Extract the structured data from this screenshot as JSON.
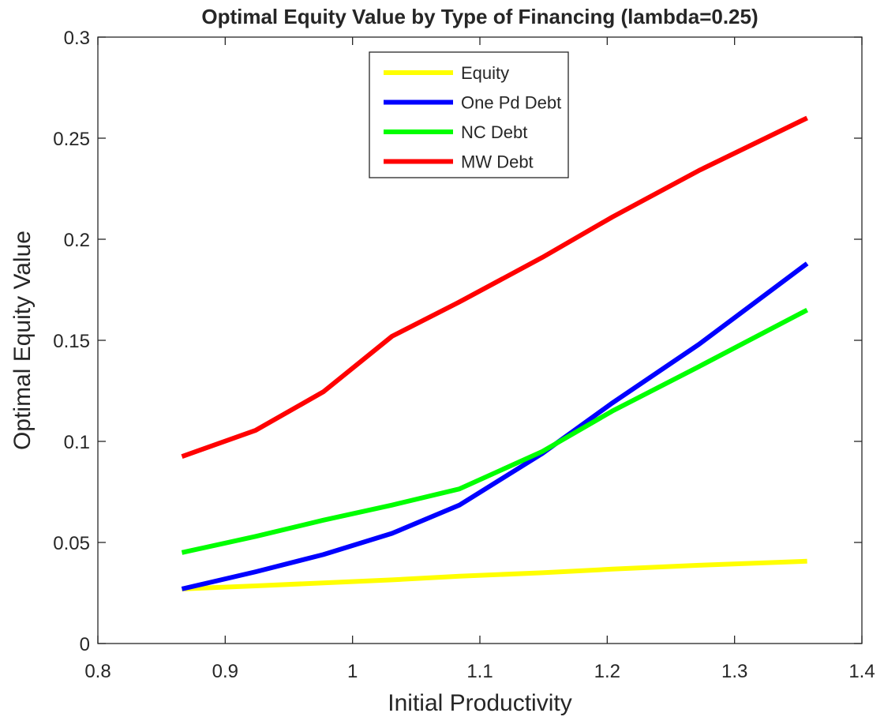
{
  "chart_data": {
    "type": "line",
    "title": "Optimal Equity Value by Type of Financing (lambda=0.25)",
    "x_label": "Initial Productivity",
    "y_label": "Optimal Equity Value",
    "x": [
      0.866,
      0.924,
      0.977,
      1.031,
      1.084,
      1.149,
      1.204,
      1.272,
      1.357
    ],
    "series": [
      {
        "name": "Equity",
        "color": "#ffff00",
        "values": [
          0.027,
          0.0285,
          0.03,
          0.0315,
          0.0333,
          0.035,
          0.0368,
          0.0387,
          0.0407
        ]
      },
      {
        "name": "One Pd Debt",
        "color": "#0000ff",
        "values": [
          0.027,
          0.0355,
          0.044,
          0.0545,
          0.0685,
          0.094,
          0.119,
          0.148,
          0.188
        ]
      },
      {
        "name": "NC Debt",
        "color": "#00ff00",
        "values": [
          0.045,
          0.053,
          0.061,
          0.0685,
          0.0765,
          0.095,
          0.115,
          0.137,
          0.165
        ]
      },
      {
        "name": "MW Debt",
        "color": "#ff0000",
        "values": [
          0.0925,
          0.1055,
          0.1245,
          0.152,
          0.169,
          0.191,
          0.211,
          0.234,
          0.26
        ]
      }
    ],
    "xlim": [
      0.8,
      1.4
    ],
    "xticks": [
      0.8,
      0.9,
      1,
      1.1,
      1.2,
      1.3,
      1.4
    ],
    "ylim": [
      0,
      0.3
    ],
    "yticks": [
      0,
      0.05,
      0.1,
      0.15,
      0.2,
      0.25,
      0.3
    ],
    "legend": "top-center"
  }
}
